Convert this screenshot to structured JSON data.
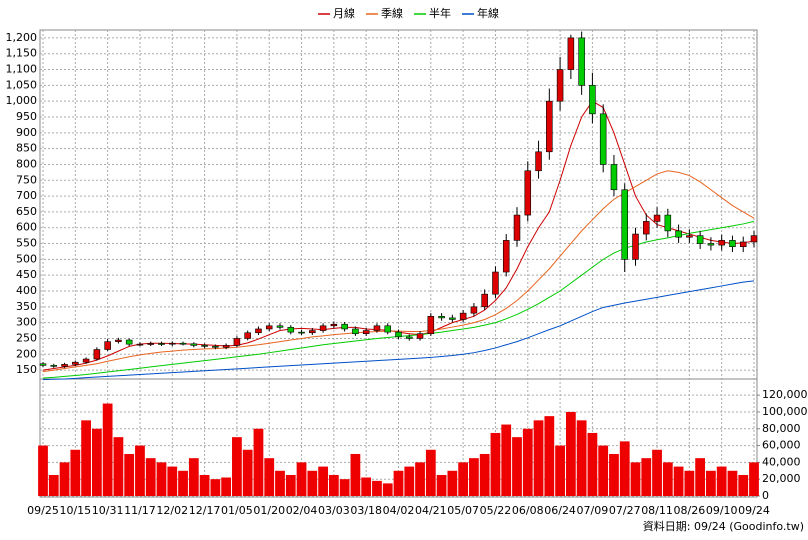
{
  "chart_data": {
    "type": "candlestick",
    "legend": "top",
    "grid": true,
    "up_color": "#dd0000",
    "down_color": "#00cc00",
    "volume_color": "#ee0000",
    "footnote": "資料日期: 09/24  (Goodinfo.tw)",
    "categories": [
      "09/25",
      null,
      null,
      "10/15",
      null,
      null,
      "10/31",
      null,
      null,
      "11/17",
      null,
      null,
      "12/02",
      null,
      null,
      "12/17",
      null,
      null,
      "01/05",
      null,
      null,
      "01/20",
      null,
      null,
      "02/04",
      null,
      null,
      "03/03",
      null,
      null,
      "03/18",
      null,
      null,
      "04/02",
      null,
      null,
      "04/21",
      null,
      null,
      "05/07",
      null,
      null,
      "05/22",
      null,
      null,
      "06/08",
      null,
      null,
      "06/24",
      null,
      null,
      "07/09",
      null,
      null,
      "07/27",
      null,
      null,
      "08/11",
      null,
      null,
      "08/26",
      null,
      null,
      "09/10",
      null,
      null,
      "09/24"
    ],
    "open": [
      170,
      165,
      162,
      168,
      175,
      185,
      215,
      240,
      245,
      232,
      232,
      234,
      232,
      235,
      233,
      228,
      225,
      222,
      228,
      250,
      268,
      280,
      290,
      285,
      270,
      268,
      275,
      290,
      295,
      280,
      265,
      275,
      290,
      270,
      255,
      250,
      265,
      320,
      315,
      310,
      330,
      350,
      390,
      460,
      560,
      640,
      780,
      840,
      1000,
      1100,
      1200,
      1050,
      960,
      800,
      720,
      500,
      580,
      620,
      640,
      590,
      570,
      575,
      550,
      545,
      560,
      540,
      555
    ],
    "high": [
      175,
      170,
      173,
      180,
      190,
      222,
      248,
      252,
      250,
      238,
      240,
      240,
      241,
      240,
      238,
      234,
      231,
      234,
      257,
      275,
      288,
      298,
      298,
      292,
      278,
      283,
      298,
      304,
      302,
      288,
      283,
      298,
      298,
      278,
      263,
      273,
      330,
      330,
      325,
      340,
      362,
      405,
      478,
      580,
      665,
      810,
      875,
      1040,
      1140,
      1210,
      1220,
      1090,
      990,
      830,
      740,
      600,
      645,
      665,
      660,
      610,
      595,
      590,
      570,
      578,
      575,
      572,
      590
    ],
    "low": [
      160,
      157,
      157,
      163,
      170,
      180,
      210,
      234,
      226,
      226,
      226,
      226,
      226,
      228,
      222,
      219,
      216,
      216,
      222,
      244,
      261,
      273,
      278,
      263,
      261,
      261,
      268,
      282,
      272,
      258,
      258,
      268,
      263,
      248,
      243,
      243,
      258,
      306,
      301,
      301,
      320,
      340,
      378,
      446,
      540,
      620,
      755,
      815,
      970,
      1070,
      1020,
      930,
      775,
      700,
      460,
      480,
      560,
      600,
      570,
      552,
      552,
      533,
      528,
      528,
      523,
      523,
      538
    ],
    "close": [
      165,
      162,
      168,
      175,
      185,
      215,
      240,
      245,
      232,
      232,
      234,
      232,
      235,
      233,
      228,
      225,
      222,
      228,
      250,
      268,
      280,
      290,
      285,
      270,
      268,
      275,
      290,
      295,
      280,
      265,
      275,
      290,
      270,
      255,
      250,
      265,
      320,
      315,
      310,
      330,
      350,
      390,
      460,
      560,
      640,
      780,
      840,
      1000,
      1100,
      1200,
      1050,
      960,
      800,
      720,
      500,
      580,
      620,
      640,
      590,
      570,
      575,
      550,
      545,
      560,
      540,
      555,
      575
    ],
    "series": [
      {
        "name": "月線",
        "color": "#cc0000",
        "values": [
          150,
          155,
          160,
          165,
          172,
          182,
          195,
          210,
          225,
          232,
          235,
          235,
          234,
          233,
          232,
          230,
          228,
          226,
          228,
          236,
          248,
          262,
          275,
          280,
          282,
          280,
          278,
          282,
          285,
          285,
          280,
          278,
          276,
          270,
          265,
          262,
          270,
          285,
          300,
          310,
          320,
          340,
          370,
          410,
          470,
          540,
          600,
          650,
          750,
          860,
          950,
          1000,
          980,
          900,
          800,
          700,
          640,
          610,
          600,
          590,
          580,
          570,
          560,
          555,
          550,
          552,
          558
        ]
      },
      {
        "name": "季線",
        "color": "#e8641e",
        "values": [
          145,
          150,
          155,
          160,
          165,
          170,
          178,
          185,
          192,
          198,
          203,
          207,
          210,
          213,
          215,
          217,
          218,
          220,
          222,
          226,
          230,
          235,
          240,
          245,
          250,
          255,
          258,
          262,
          265,
          268,
          270,
          272,
          273,
          273,
          272,
          272,
          275,
          280,
          286,
          292,
          300,
          310,
          325,
          345,
          370,
          400,
          435,
          470,
          510,
          550,
          590,
          625,
          660,
          690,
          710,
          730,
          750,
          770,
          780,
          775,
          765,
          745,
          720,
          695,
          670,
          650,
          630
        ]
      },
      {
        "name": "半年",
        "color": "#00cc00",
        "values": [
          125,
          127,
          130,
          133,
          136,
          140,
          144,
          148,
          152,
          156,
          160,
          164,
          168,
          172,
          176,
          180,
          184,
          188,
          192,
          196,
          200,
          205,
          210,
          215,
          220,
          225,
          230,
          234,
          238,
          242,
          246,
          250,
          253,
          256,
          259,
          262,
          266,
          270,
          275,
          280,
          285,
          292,
          300,
          312,
          326,
          342,
          360,
          380,
          400,
          425,
          450,
          475,
          500,
          520,
          535,
          545,
          555,
          562,
          568,
          575,
          582,
          588,
          594,
          600,
          606,
          612,
          620
        ]
      },
      {
        "name": "年線",
        "color": "#0050c8",
        "values": [
          120,
          121,
          122,
          124,
          126,
          128,
          130,
          132,
          134,
          136,
          138,
          140,
          142,
          144,
          146,
          148,
          150,
          152,
          154,
          156,
          158,
          160,
          162,
          164,
          166,
          168,
          170,
          172,
          174,
          176,
          178,
          180,
          182,
          184,
          186,
          188,
          190,
          193,
          196,
          200,
          205,
          212,
          220,
          230,
          240,
          252,
          265,
          278,
          290,
          305,
          320,
          335,
          348,
          355,
          362,
          368,
          374,
          380,
          386,
          392,
          398,
          404,
          410,
          416,
          422,
          428,
          432
        ]
      }
    ],
    "volume": [
      60000,
      25000,
      40000,
      55000,
      90000,
      80000,
      110000,
      70000,
      50000,
      60000,
      45000,
      40000,
      35000,
      30000,
      45000,
      25000,
      20000,
      22000,
      70000,
      55000,
      80000,
      45000,
      30000,
      25000,
      40000,
      30000,
      35000,
      25000,
      20000,
      50000,
      22000,
      18000,
      15000,
      30000,
      35000,
      40000,
      55000,
      25000,
      30000,
      40000,
      45000,
      50000,
      75000,
      85000,
      70000,
      80000,
      90000,
      95000,
      60000,
      100000,
      90000,
      75000,
      60000,
      50000,
      65000,
      40000,
      45000,
      55000,
      40000,
      35000,
      30000,
      45000,
      30000,
      35000,
      30000,
      25000,
      40000
    ],
    "ylim": [
      125,
      1225
    ],
    "yticks": [
      150,
      200,
      250,
      300,
      350,
      400,
      450,
      500,
      550,
      600,
      650,
      700,
      750,
      800,
      850,
      900,
      950,
      {
        "value": 1000,
        "label": "1,000"
      },
      {
        "value": 1050,
        "label": "1,050"
      },
      {
        "value": 1100,
        "label": "1,100"
      },
      {
        "value": 1150,
        "label": "1,150"
      },
      {
        "value": 1200,
        "label": "1,200"
      }
    ],
    "y2lim": [
      0,
      138000
    ],
    "y2ticks": [
      0,
      {
        "value": 20000,
        "label": "20,000"
      },
      {
        "value": 40000,
        "label": "40,000"
      },
      {
        "value": 60000,
        "label": "60,000"
      },
      {
        "value": 80000,
        "label": "80,000"
      },
      {
        "value": 100000,
        "label": "100,000"
      },
      {
        "value": 120000,
        "label": "120,000"
      }
    ]
  }
}
